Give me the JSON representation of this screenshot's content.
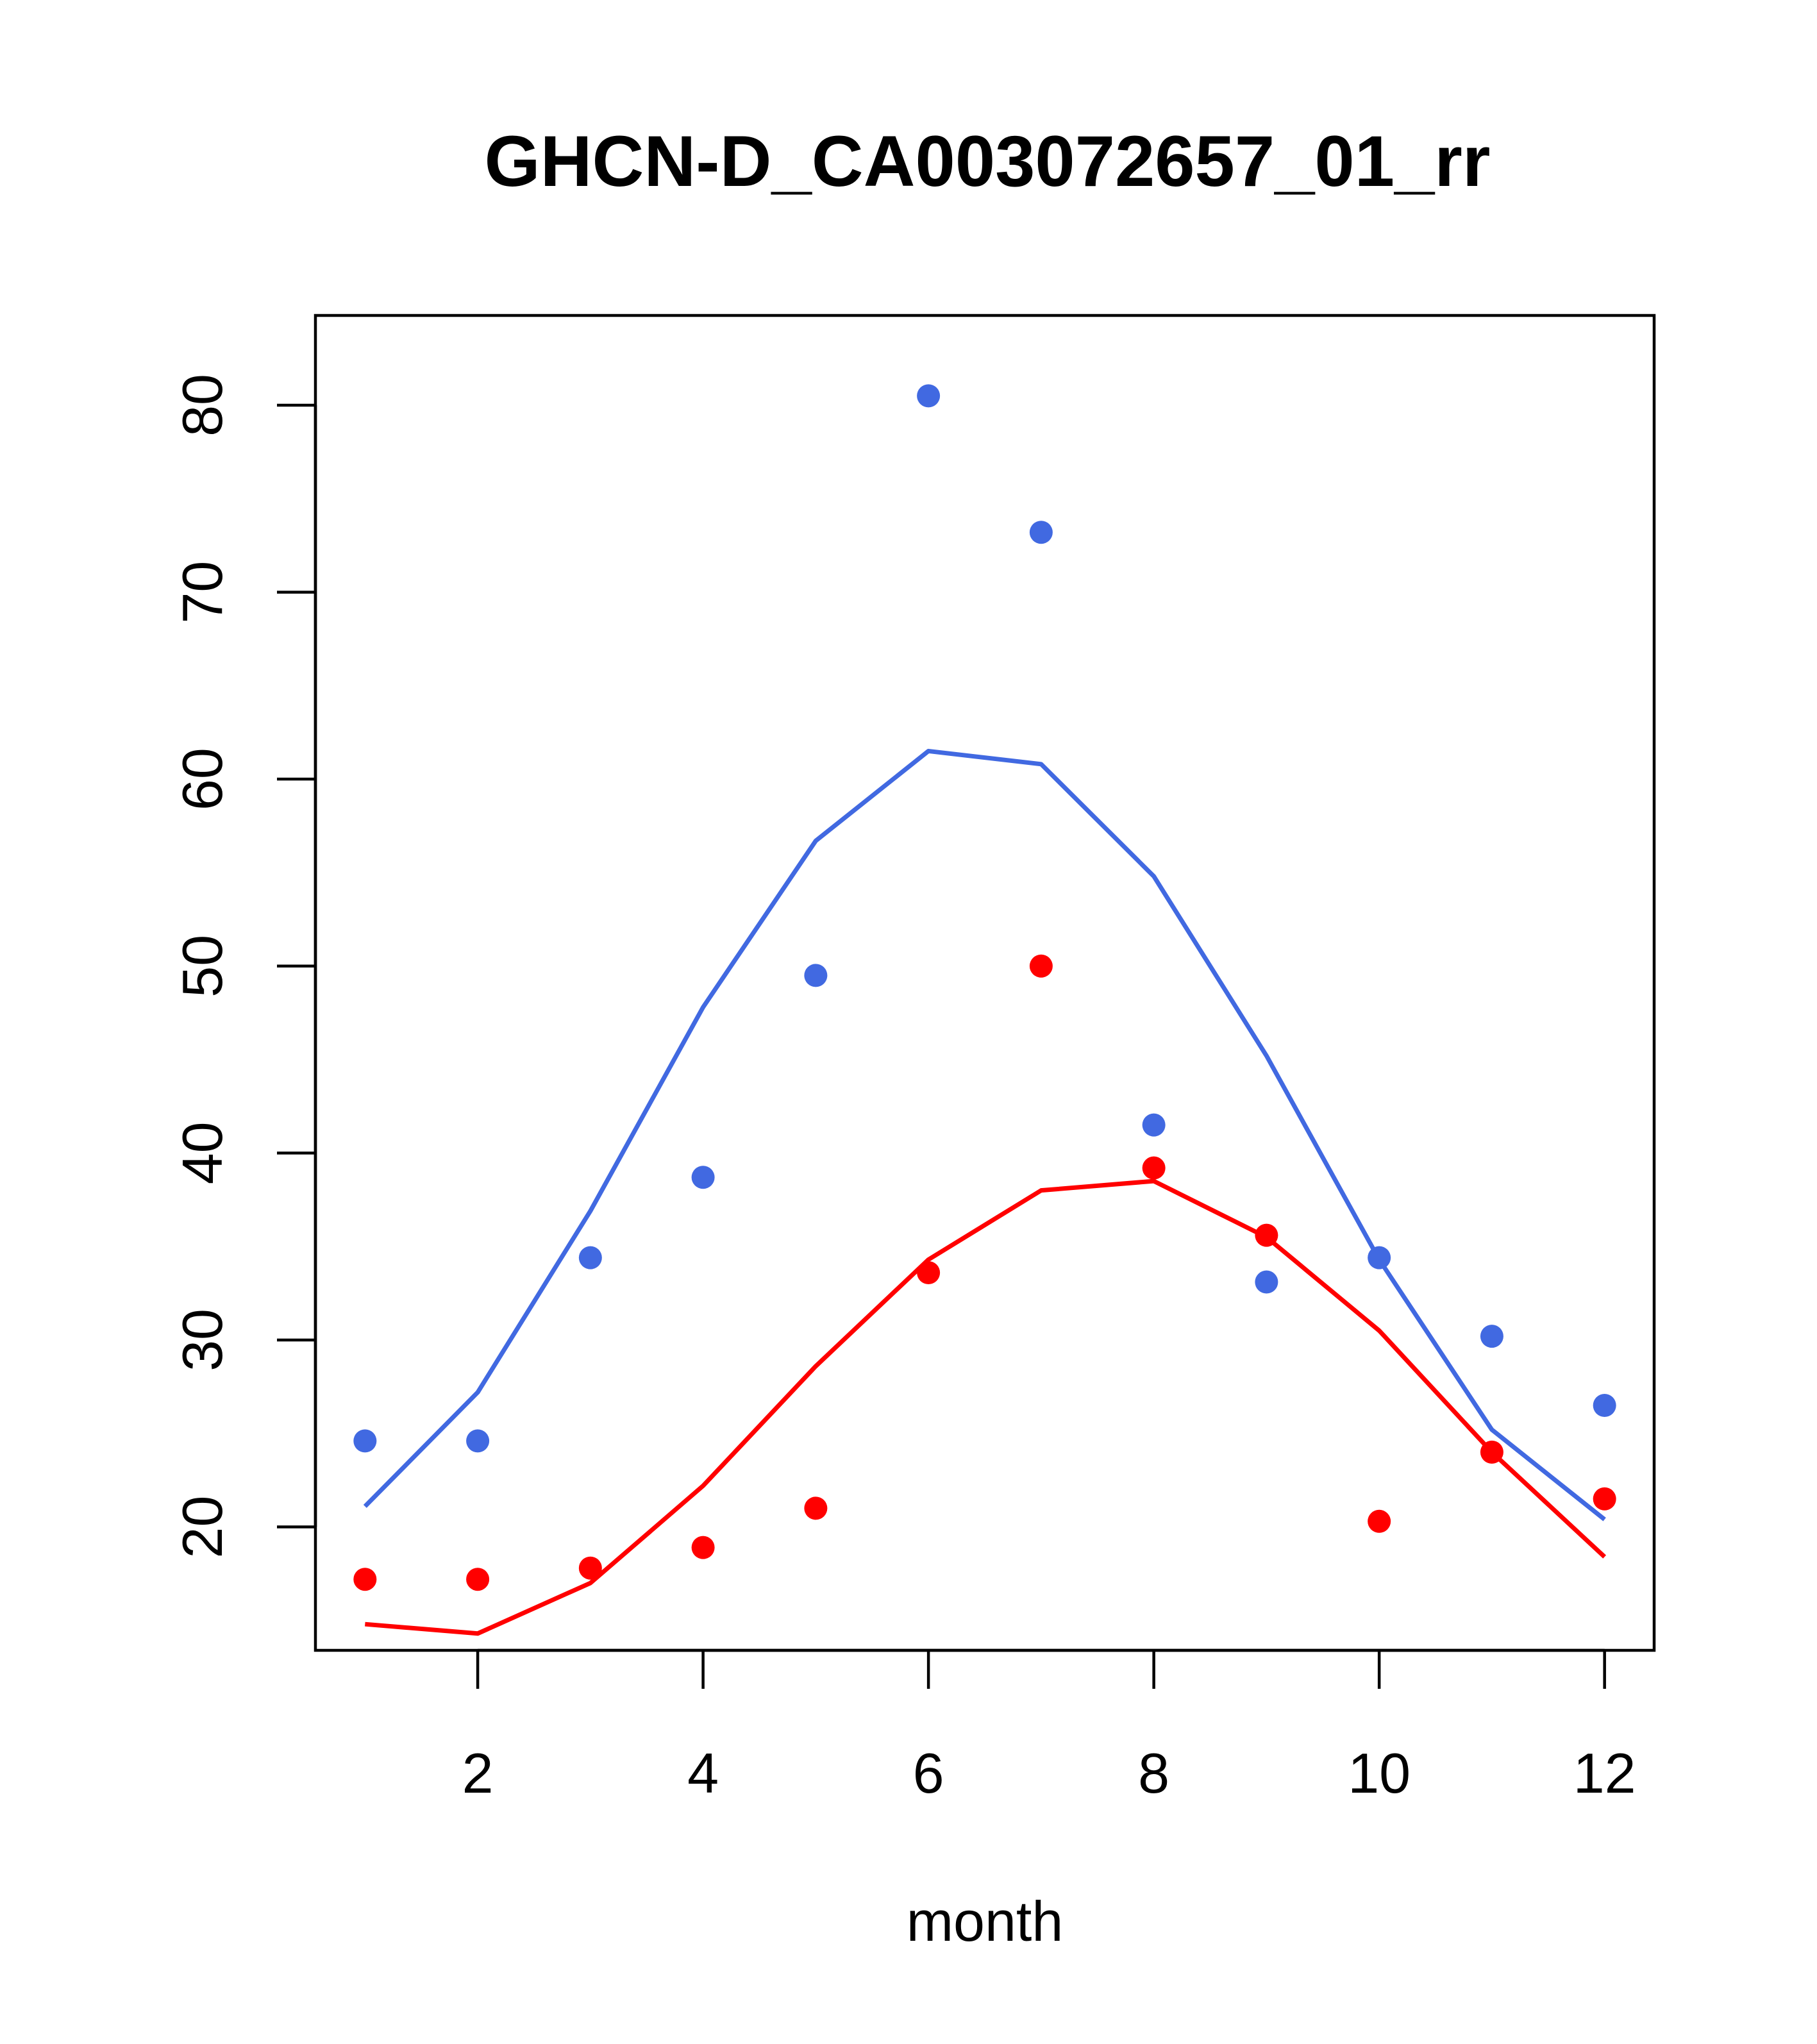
{
  "chart_data": {
    "type": "line",
    "title": "GHCN-D_CA003072657_01_rr",
    "xlabel": "month",
    "ylabel": "",
    "xlim": [
      0.56,
      12.44
    ],
    "ylim": [
      13.4,
      84.8
    ],
    "x_ticks": [
      2,
      4,
      6,
      8,
      10,
      12
    ],
    "y_ticks": [
      20,
      30,
      40,
      50,
      60,
      70,
      80
    ],
    "grid": false,
    "legend": "none",
    "x": [
      1,
      2,
      3,
      4,
      5,
      6,
      7,
      8,
      9,
      10,
      11,
      12
    ],
    "series": [
      {
        "name": "blue-points",
        "kind": "scatter",
        "color": "#4169E1",
        "values": [
          24.6,
          24.6,
          34.4,
          38.7,
          49.5,
          80.5,
          73.2,
          41.5,
          33.1,
          34.4,
          30.2,
          26.5
        ]
      },
      {
        "name": "blue-line",
        "kind": "line",
        "color": "#4169E1",
        "values": [
          21.1,
          27.2,
          36.9,
          47.8,
          56.7,
          61.5,
          60.8,
          54.8,
          45.2,
          34.3,
          25.2,
          20.4
        ]
      },
      {
        "name": "red-points",
        "kind": "scatter",
        "color": "#FF0000",
        "values": [
          17.2,
          17.2,
          17.8,
          18.9,
          21.0,
          33.6,
          50.0,
          39.2,
          35.6,
          20.3,
          24.0,
          21.5
        ]
      },
      {
        "name": "red-line",
        "kind": "line",
        "color": "#FF0000",
        "values": [
          14.8,
          14.3,
          17.0,
          22.2,
          28.6,
          34.3,
          38.0,
          38.5,
          35.5,
          30.5,
          24.0,
          18.4
        ]
      }
    ]
  }
}
